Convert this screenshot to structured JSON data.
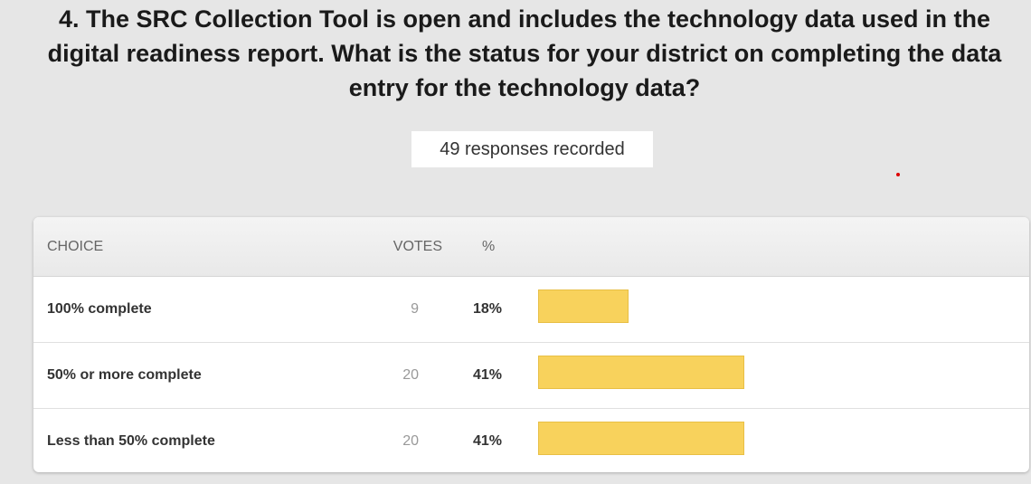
{
  "question": "4. The SRC Collection Tool is open and includes the technology data used in the digital readiness report. What is the status for your district on completing the data entry for the technology data?",
  "responses": "49 responses recorded",
  "table": {
    "headers": [
      "CHOICE",
      "VOTES",
      "%"
    ],
    "rows": [
      {
        "choice": "100% complete",
        "votes": 9,
        "percent": 18,
        "percent_label": "18%"
      },
      {
        "choice": "50% or more complete",
        "votes": 20,
        "percent": 41,
        "percent_label": "41%"
      },
      {
        "choice": "Less than 50% complete",
        "votes": 20,
        "percent": 41,
        "percent_label": "41%"
      }
    ]
  }
}
